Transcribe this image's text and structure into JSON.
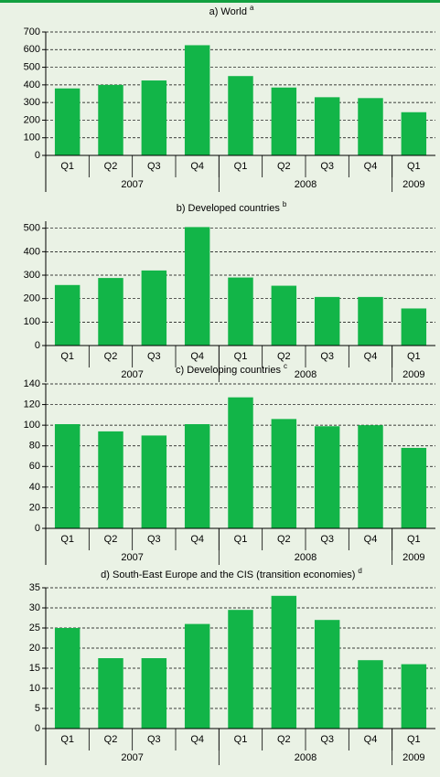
{
  "chart_data": [
    {
      "type": "bar",
      "title": "a)  World",
      "title_note": "a",
      "color": "#12b548",
      "categories": [
        "Q1",
        "Q2",
        "Q3",
        "Q4",
        "Q1",
        "Q2",
        "Q3",
        "Q4",
        "Q1"
      ],
      "groups": [
        {
          "label": "2007",
          "count": 4
        },
        {
          "label": "2008",
          "count": 4
        },
        {
          "label": "2009",
          "count": 1
        }
      ],
      "values": [
        380,
        400,
        425,
        625,
        450,
        385,
        330,
        325,
        245
      ],
      "ylim": [
        0,
        700
      ],
      "yticks": [
        0,
        100,
        200,
        300,
        400,
        500,
        600,
        700
      ],
      "grid": true
    },
    {
      "type": "bar",
      "title": "b) Developed countries",
      "title_note": "b",
      "color": "#12b548",
      "categories": [
        "Q1",
        "Q2",
        "Q3",
        "Q4",
        "Q1",
        "Q2",
        "Q3",
        "Q4",
        "Q1"
      ],
      "groups": [
        {
          "label": "2007",
          "count": 4
        },
        {
          "label": "2008",
          "count": 4
        },
        {
          "label": "2009",
          "count": 1
        }
      ],
      "values": [
        258,
        288,
        320,
        505,
        290,
        255,
        207,
        207,
        158
      ],
      "ylim": [
        0,
        530
      ],
      "yticks": [
        0,
        100,
        200,
        300,
        400,
        500
      ],
      "grid": true
    },
    {
      "type": "bar",
      "title": "c) Developing countries",
      "title_note": "c",
      "color": "#12b548",
      "categories": [
        "Q1",
        "Q2",
        "Q3",
        "Q4",
        "Q1",
        "Q2",
        "Q3",
        "Q4",
        "Q1"
      ],
      "groups": [
        {
          "label": "2007",
          "count": 4
        },
        {
          "label": "2008",
          "count": 4
        },
        {
          "label": "2009",
          "count": 1
        }
      ],
      "values": [
        101,
        94,
        90,
        101,
        127,
        106,
        99,
        100,
        78
      ],
      "ylim": [
        0,
        140
      ],
      "yticks": [
        0,
        20,
        40,
        60,
        80,
        100,
        120,
        140
      ],
      "grid": true
    },
    {
      "type": "bar",
      "title": "d) South-East Europe and the CIS (transition economies)",
      "title_note": "d",
      "color": "#12b548",
      "categories": [
        "Q1",
        "Q2",
        "Q3",
        "Q4",
        "Q1",
        "Q2",
        "Q3",
        "Q4",
        "Q1"
      ],
      "groups": [
        {
          "label": "2007",
          "count": 4
        },
        {
          "label": "2008",
          "count": 4
        },
        {
          "label": "2009",
          "count": 1
        }
      ],
      "values": [
        25,
        17.5,
        17.5,
        26,
        29.5,
        33,
        27,
        17,
        16
      ],
      "ylim": [
        0,
        35
      ],
      "yticks": [
        0,
        5,
        10,
        15,
        20,
        25,
        30,
        35
      ],
      "grid": true
    }
  ]
}
